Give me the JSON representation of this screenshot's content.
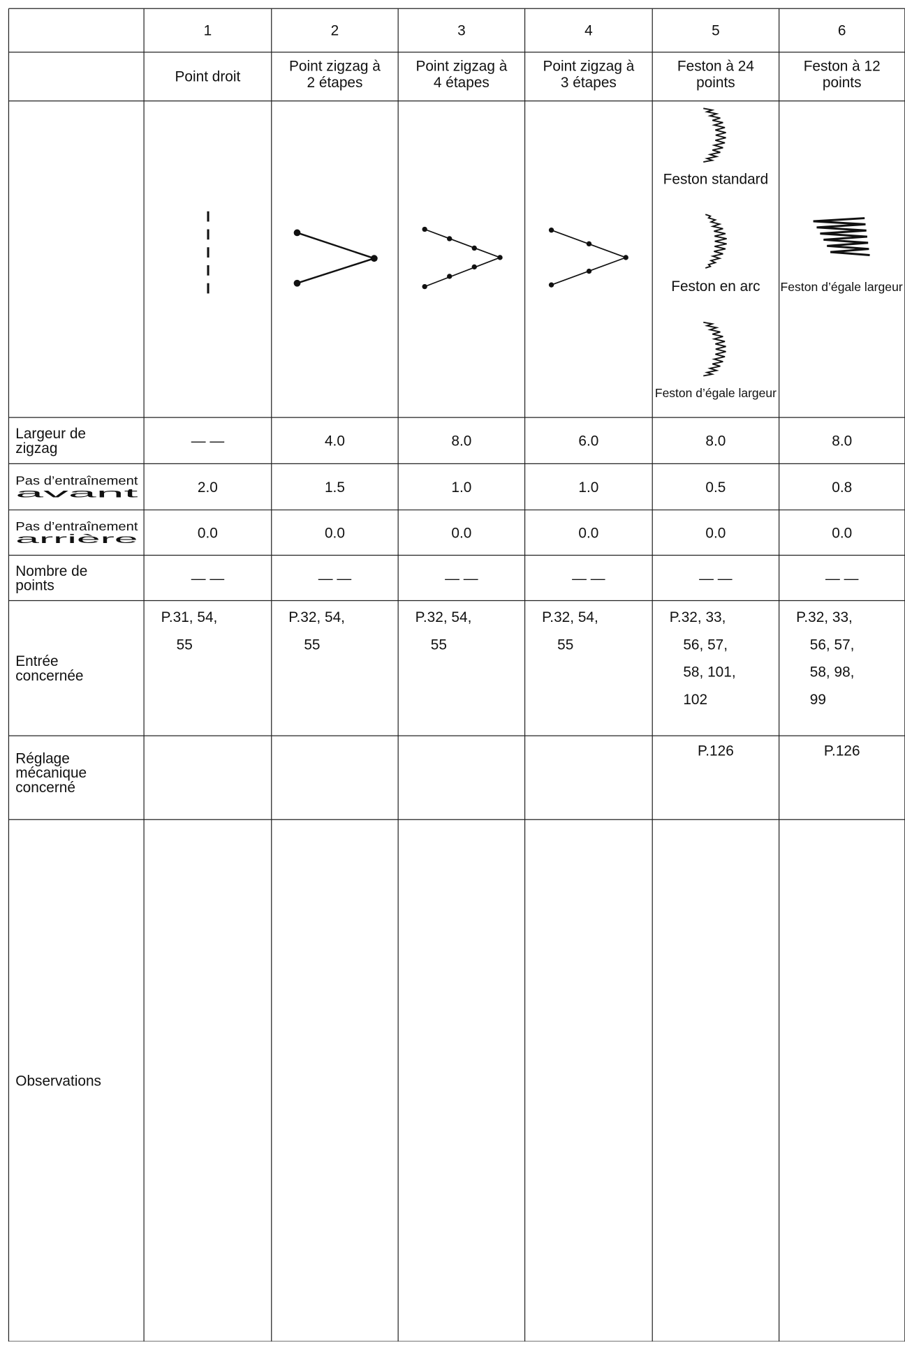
{
  "table": {
    "header_numbers": [
      "1",
      "2",
      "3",
      "4",
      "5",
      "6"
    ],
    "header_names": [
      [
        "Point droit"
      ],
      [
        "Point zigzag à",
        "2 étapes"
      ],
      [
        "Point zigzag à",
        "4 étapes"
      ],
      [
        "Point zigzag à",
        "3 étapes"
      ],
      [
        "Feston à 24",
        "points"
      ],
      [
        "Feston à 12",
        "points"
      ]
    ],
    "pattern_captions": {
      "col5": [
        "Feston standard",
        "Feston en arc",
        "Feston d’égale largeur"
      ],
      "col6": [
        "Feston d’égale largeur"
      ]
    },
    "rows": [
      {
        "label": [
          "Largeur de",
          "zigzag"
        ],
        "cells": [
          [
            "— —"
          ],
          [
            "4.0"
          ],
          [
            "8.0"
          ],
          [
            "6.0"
          ],
          [
            "8.0"
          ],
          [
            "8.0"
          ]
        ]
      },
      {
        "label": [
          "Pas d’entraînement",
          "avant"
        ],
        "cells": [
          [
            "2.0"
          ],
          [
            "1.5"
          ],
          [
            "1.0"
          ],
          [
            "1.0"
          ],
          [
            "0.5"
          ],
          [
            "0.8"
          ]
        ]
      },
      {
        "label": [
          "Pas d’entraînement",
          "arrière"
        ],
        "cells": [
          [
            "0.0"
          ],
          [
            "0.0"
          ],
          [
            "0.0"
          ],
          [
            "0.0"
          ],
          [
            "0.0"
          ],
          [
            "0.0"
          ]
        ]
      },
      {
        "label": [
          "Nombre de",
          "points"
        ],
        "cells": [
          [
            "— —"
          ],
          [
            "— —"
          ],
          [
            "— —"
          ],
          [
            "— —"
          ],
          [
            "— —"
          ],
          [
            "— —"
          ]
        ]
      },
      {
        "label": [
          "Entrée",
          "concernée"
        ],
        "cells": [
          [
            "P.31, 54,",
            "55"
          ],
          [
            "P.32, 54,",
            "55"
          ],
          [
            "P.32, 54,",
            "55"
          ],
          [
            "P.32, 54,",
            "55"
          ],
          [
            "P.32, 33,",
            "56, 57,",
            "58, 101,",
            "102"
          ],
          [
            "P.32, 33,",
            "56, 57,",
            "58, 98,",
            "99"
          ]
        ]
      },
      {
        "label": [
          "Réglage",
          "mécanique",
          "concerné"
        ],
        "cells": [
          [],
          [],
          [],
          [],
          [
            "P.126"
          ],
          [
            "P.126"
          ]
        ]
      },
      {
        "label": [
          "Observations"
        ],
        "cells": [
          [],
          [],
          [],
          [],
          [],
          []
        ]
      }
    ]
  }
}
